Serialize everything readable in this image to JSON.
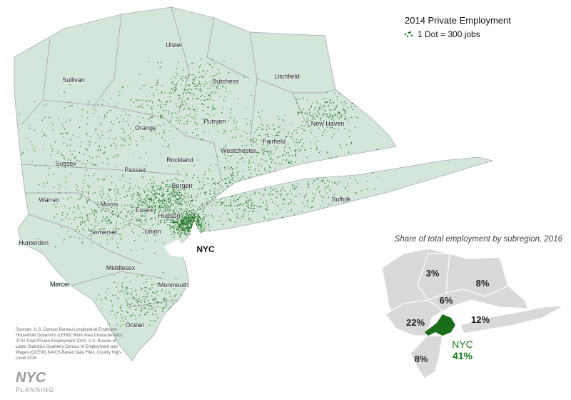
{
  "legend": {
    "title": "2014 Private Employment",
    "key": "1 Dot = 300 jobs"
  },
  "counties": [
    "Sullivan",
    "Ulster",
    "Dutchess",
    "Litchfield",
    "Orange",
    "Putnam",
    "New Haven",
    "Westchester",
    "Fairfield",
    "Sussex",
    "Passaic",
    "Rockland",
    "Bergen",
    "Warren",
    "Morris",
    "Essex",
    "Hudson",
    "Union",
    "Suffolk",
    "Hunterdon",
    "Somerset",
    "Middlesex",
    "Mercer",
    "Monmouth",
    "Ocean"
  ],
  "nyc_label": "NYC",
  "inset": {
    "title": "Share of total employment by subregion, 2016",
    "shares": [
      "3%",
      "8%",
      "6%",
      "22%",
      "12%",
      "8%"
    ],
    "nyc_name": "NYC",
    "nyc_share": "41%"
  },
  "sources": "Sources: U.S. Census Bureau Longitudinal Employer-Household Dynamics (LEHD) Work Area Characteristics, JT02 Total Private Employment 2014; U.S. Bureau of Labor Statistics Quarterly Census of Employment and Wages (QCEW) NAICS-Based Data Files, County High-Level 2015",
  "logo": {
    "mark": "NYC",
    "sub": "PLANNING"
  }
}
